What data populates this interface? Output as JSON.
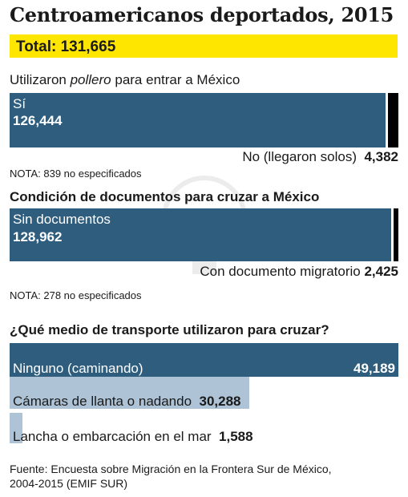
{
  "header": {
    "title": "Centroamericanos deportados, 2015",
    "total_label": "Total: 131,665"
  },
  "section1": {
    "heading_pre": "Utilizaron ",
    "heading_em": "pollero",
    "heading_post": " para entrar a México",
    "bar_label": "Sí",
    "bar_value": "126,444",
    "other_label": "No (llegaron solos)",
    "other_value": "4,382",
    "note": "NOTA: 839 no especificados"
  },
  "section2": {
    "heading": "Condición de documentos para cruzar a México",
    "bar_label": "Sin documentos",
    "bar_value": "128,962",
    "other_label": "Con documento migratorio",
    "other_value": "2,425",
    "note": "NOTA: 278 no especificados"
  },
  "section3": {
    "heading": "¿Qué medio de transporte utilizaron para cruzar?",
    "rows": [
      {
        "label": "Ninguno (caminando)",
        "value": "49,189"
      },
      {
        "label": "Cámaras de llanta o nadando",
        "value": "30,288"
      },
      {
        "label": "Lancha o embarcación en el mar",
        "value": "1,588"
      }
    ]
  },
  "source": {
    "line1": "Fuente: Encuesta sobre Migración en la Frontera Sur de México,",
    "line2": "2004-2015 (EMIF SUR)"
  },
  "colors": {
    "dark_blue": "#2f5d7e",
    "light_blue": "#aec3d6",
    "highlight": "#ffe600",
    "black": "#000000"
  },
  "chart_data": [
    {
      "type": "bar",
      "stacked": true,
      "orientation": "horizontal",
      "title": "Utilizaron pollero para entrar a México",
      "categories": [
        "Sí",
        "No (llegaron solos)"
      ],
      "values": [
        126444,
        4382
      ]
    },
    {
      "type": "bar",
      "stacked": true,
      "orientation": "horizontal",
      "title": "Condición de documentos para cruzar a México",
      "categories": [
        "Sin documentos",
        "Con documento migratorio"
      ],
      "values": [
        128962,
        2425
      ]
    },
    {
      "type": "bar",
      "orientation": "horizontal",
      "title": "¿Qué medio de transporte utilizaron para cruzar?",
      "categories": [
        "Ninguno (caminando)",
        "Cámaras de llanta o nadando",
        "Lancha o embarcación en el mar"
      ],
      "values": [
        49189,
        30288,
        1588
      ]
    }
  ]
}
